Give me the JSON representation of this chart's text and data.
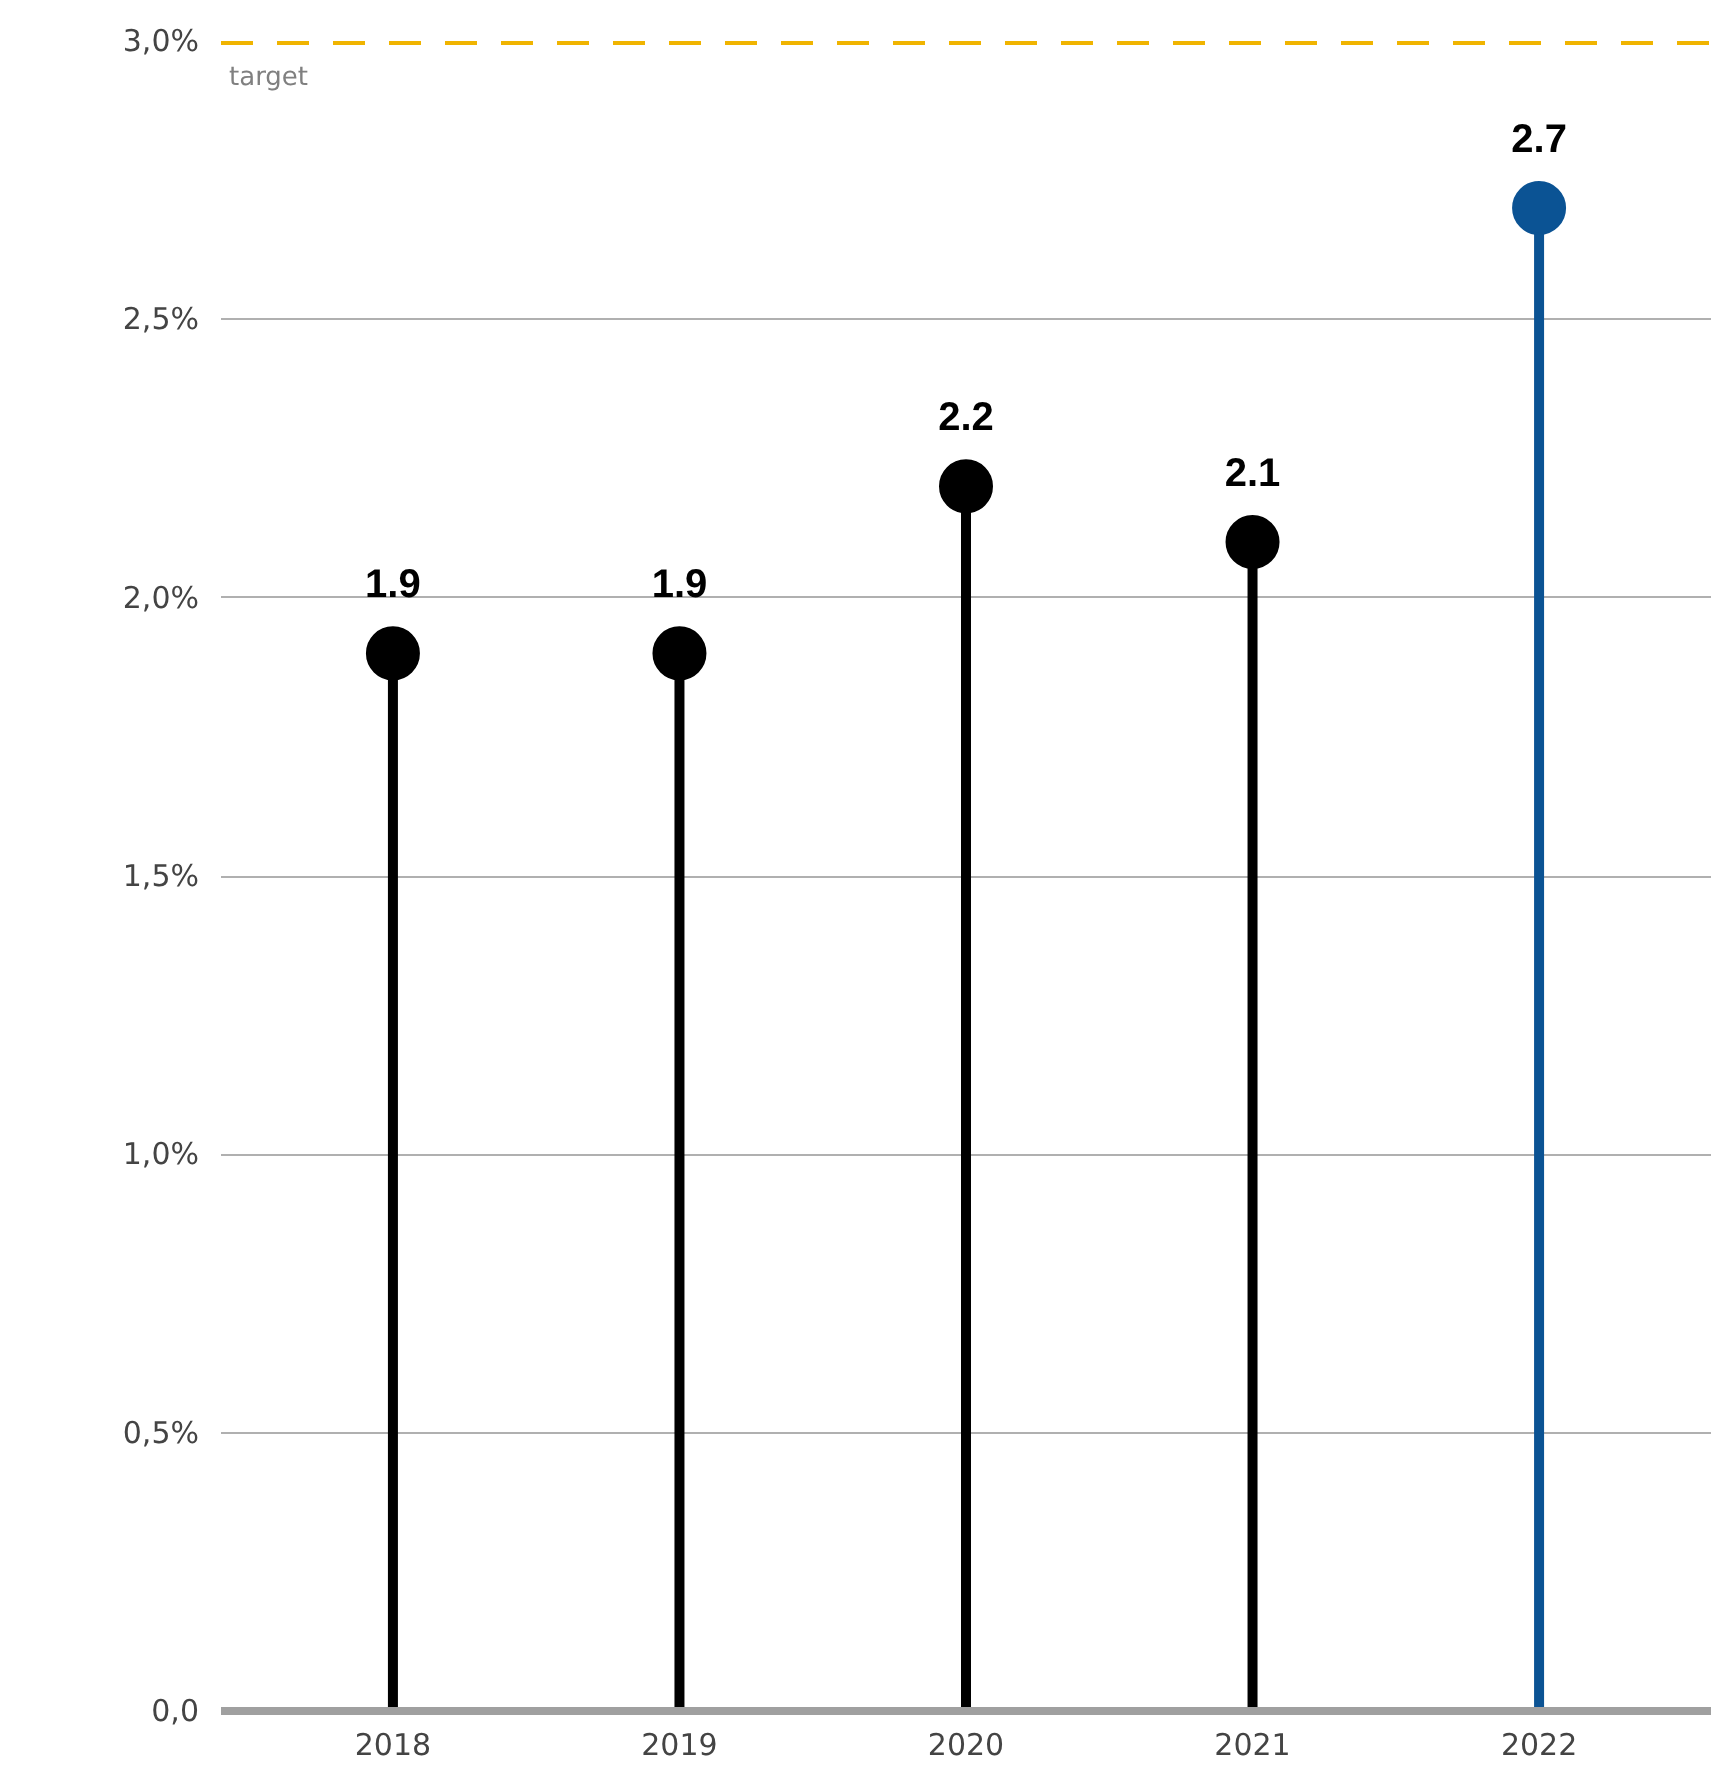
{
  "chart_data": {
    "type": "lollipop",
    "categories": [
      "2018",
      "2019",
      "2020",
      "2021",
      "2022"
    ],
    "values": [
      1.9,
      1.9,
      2.2,
      2.1,
      2.7
    ],
    "colors": [
      "#000000",
      "#000000",
      "#000000",
      "#000000",
      "#0b5394"
    ],
    "data_labels": true,
    "ylim": [
      0,
      3.0
    ],
    "yticks": [
      {
        "value": 0,
        "label": "0,0"
      },
      {
        "value": 0.5,
        "label": "0,5%"
      },
      {
        "value": 1.0,
        "label": "1,0%"
      },
      {
        "value": 1.5,
        "label": "1,5%"
      },
      {
        "value": 2.0,
        "label": "2,0%"
      },
      {
        "value": 2.5,
        "label": "2,5%"
      },
      {
        "value": 3.0,
        "label": "3,0%"
      }
    ],
    "grid": "y",
    "marker": "circle",
    "ref_lines": [
      {
        "axis": "y",
        "value": 3.0,
        "label": "target",
        "color": "#f0b400",
        "line_style": "dashed"
      }
    ]
  }
}
